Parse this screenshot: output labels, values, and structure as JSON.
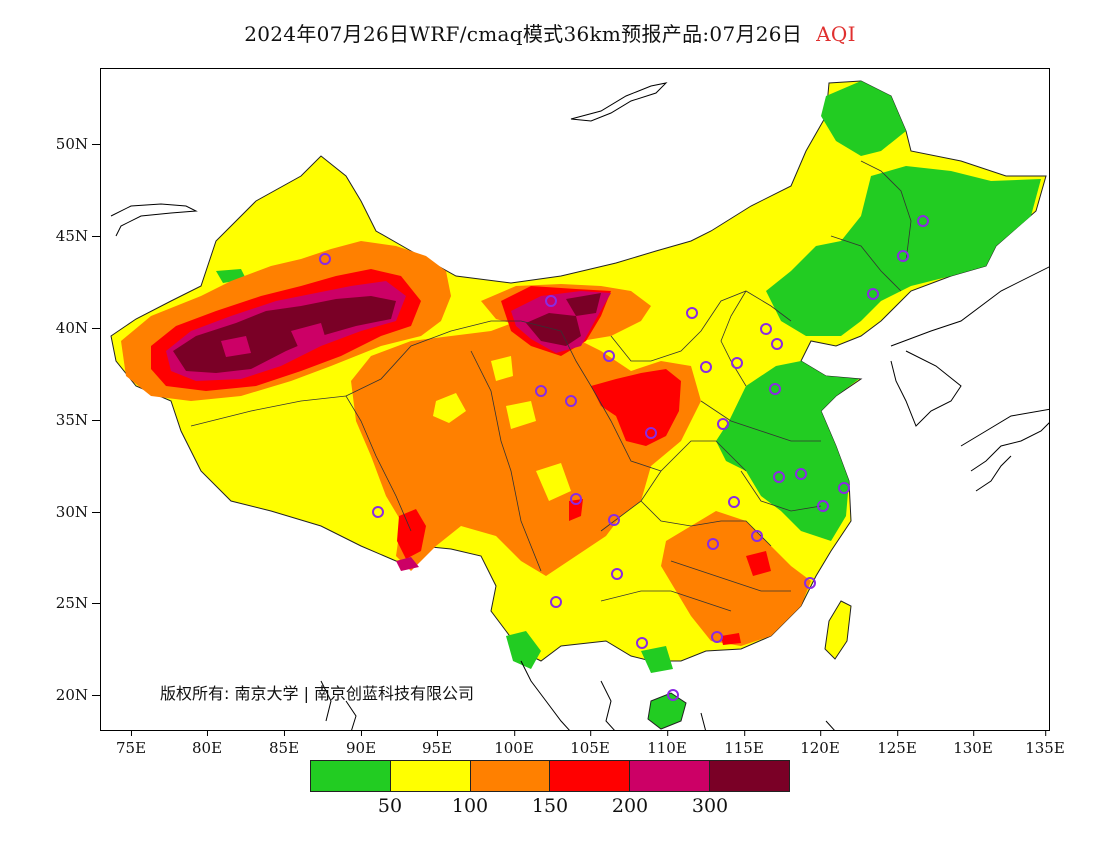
{
  "title": {
    "text": "2024年07月26日WRF/cmaq模式36km预报产品:07月26日",
    "variable": "AQI",
    "variable_color": "#e0302f"
  },
  "copyright": "版权所有: 南京大学 | 南京创蓝科技有限公司",
  "axes": {
    "lat_labels": [
      "50N",
      "45N",
      "40N",
      "35N",
      "30N",
      "25N",
      "20N"
    ],
    "lon_labels": [
      "75E",
      "80E",
      "85E",
      "90E",
      "95E",
      "100E",
      "105E",
      "110E",
      "115E",
      "120E",
      "125E",
      "130E",
      "135E"
    ]
  },
  "legend": {
    "colors": [
      "#22cc22",
      "#ffff00",
      "#ff8000",
      "#ff0000",
      "#cc0066",
      "#7a0026"
    ],
    "labels": [
      "50",
      "100",
      "150",
      "200",
      "300"
    ]
  },
  "colors": {
    "good": "#22cc22",
    "moderate": "#ffff00",
    "sensitive": "#ff8000",
    "unhealthy": "#ff0000",
    "very_unhealthy": "#cc0066",
    "hazardous": "#7a0026",
    "station_marker": "#8a2be2",
    "water": "#ffffff"
  }
}
